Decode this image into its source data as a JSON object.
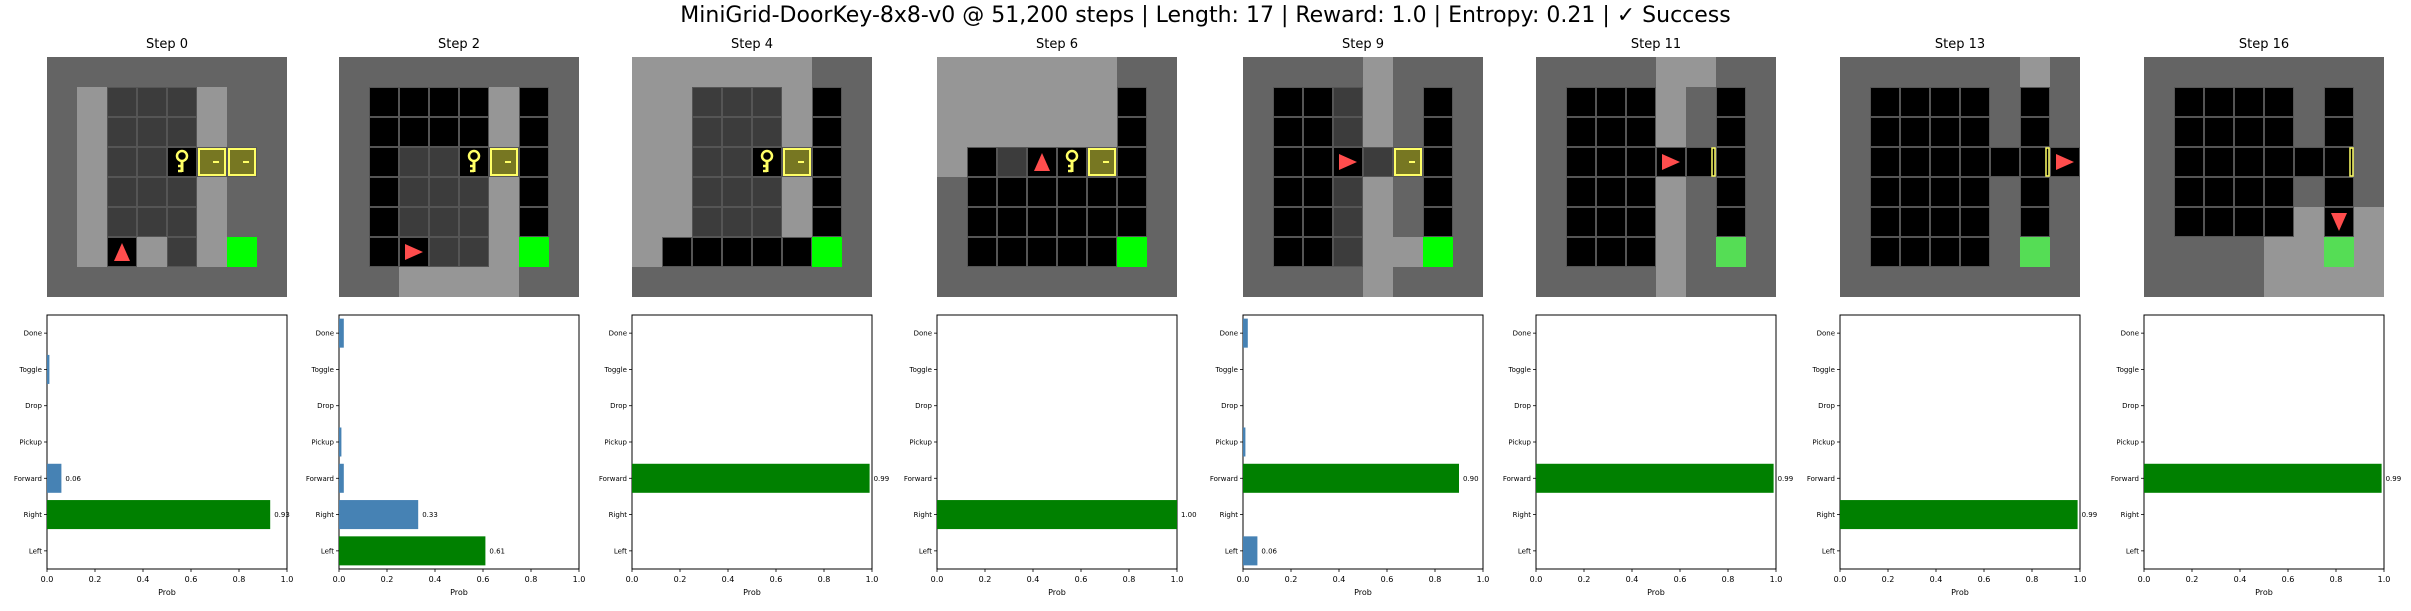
{
  "title": "MiniGrid-DoorKey-8x8-v0 @ 51,200 steps | Length: 17 | Reward: 1.0 | Entropy: 0.21 | ✓ Success",
  "colors": {
    "wall": "#646464",
    "seen_floor": "#969696",
    "dark": "#000000",
    "cell_line": "#555555",
    "agent": "#ff4d4d",
    "key": "#ffff66",
    "door": "#aaaa44",
    "goal": "#00ff00",
    "bar_default": "#4682b4",
    "bar_selected": "#008000"
  },
  "chart_data": [
    {
      "type": "bar",
      "orientation": "horizontal",
      "title": "Step 0",
      "categories": [
        "Left",
        "Right",
        "Forward",
        "Pickup",
        "Drop",
        "Toggle",
        "Done"
      ],
      "values": [
        0.0,
        0.93,
        0.06,
        0.0,
        0.0,
        0.01,
        0.0
      ],
      "value_labels": [
        "",
        "0.93",
        "0.06",
        "",
        "",
        "",
        ""
      ],
      "selected": 1,
      "xlabel": "Prob",
      "xlim": [
        0,
        1
      ],
      "xticks": [
        "0.0",
        "0.2",
        "0.4",
        "0.6",
        "0.8",
        "1.0"
      ]
    },
    {
      "type": "bar",
      "orientation": "horizontal",
      "title": "Step 2",
      "categories": [
        "Left",
        "Right",
        "Forward",
        "Pickup",
        "Drop",
        "Toggle",
        "Done"
      ],
      "values": [
        0.61,
        0.33,
        0.02,
        0.01,
        0.0,
        0.0,
        0.02
      ],
      "value_labels": [
        "0.61",
        "0.33",
        "",
        "",
        "",
        "",
        ""
      ],
      "selected": 0,
      "xlabel": "Prob",
      "xlim": [
        0,
        1
      ],
      "xticks": [
        "0.0",
        "0.2",
        "0.4",
        "0.6",
        "0.8",
        "1.0"
      ]
    },
    {
      "type": "bar",
      "orientation": "horizontal",
      "title": "Step 4",
      "categories": [
        "Left",
        "Right",
        "Forward",
        "Pickup",
        "Drop",
        "Toggle",
        "Done"
      ],
      "values": [
        0.0,
        0.0,
        0.99,
        0.0,
        0.0,
        0.0,
        0.0
      ],
      "value_labels": [
        "",
        "",
        "0.99",
        "",
        "",
        "",
        ""
      ],
      "selected": 2,
      "xlabel": "Prob",
      "xlim": [
        0,
        1
      ],
      "xticks": [
        "0.0",
        "0.2",
        "0.4",
        "0.6",
        "0.8",
        "1.0"
      ]
    },
    {
      "type": "bar",
      "orientation": "horizontal",
      "title": "Step 6",
      "categories": [
        "Left",
        "Right",
        "Forward",
        "Pickup",
        "Drop",
        "Toggle",
        "Done"
      ],
      "values": [
        0.0,
        1.0,
        0.0,
        0.0,
        0.0,
        0.0,
        0.0
      ],
      "value_labels": [
        "",
        "1.00",
        "",
        "",
        "",
        "",
        ""
      ],
      "selected": 1,
      "xlabel": "Prob",
      "xlim": [
        0,
        1
      ],
      "xticks": [
        "0.0",
        "0.2",
        "0.4",
        "0.6",
        "0.8",
        "1.0"
      ]
    },
    {
      "type": "bar",
      "orientation": "horizontal",
      "title": "Step 9",
      "categories": [
        "Left",
        "Right",
        "Forward",
        "Pickup",
        "Drop",
        "Toggle",
        "Done"
      ],
      "values": [
        0.06,
        0.0,
        0.9,
        0.01,
        0.0,
        0.0,
        0.02
      ],
      "value_labels": [
        "0.06",
        "",
        "0.90",
        "",
        "",
        "",
        ""
      ],
      "selected": 2,
      "xlabel": "Prob",
      "xlim": [
        0,
        1
      ],
      "xticks": [
        "0.0",
        "0.2",
        "0.4",
        "0.6",
        "0.8",
        "1.0"
      ]
    },
    {
      "type": "bar",
      "orientation": "horizontal",
      "title": "Step 11",
      "categories": [
        "Left",
        "Right",
        "Forward",
        "Pickup",
        "Drop",
        "Toggle",
        "Done"
      ],
      "values": [
        0.0,
        0.0,
        0.99,
        0.0,
        0.0,
        0.0,
        0.0
      ],
      "value_labels": [
        "",
        "",
        "0.99",
        "",
        "",
        "",
        ""
      ],
      "selected": 2,
      "xlabel": "Prob",
      "xlim": [
        0,
        1
      ],
      "xticks": [
        "0.0",
        "0.2",
        "0.4",
        "0.6",
        "0.8",
        "1.0"
      ]
    },
    {
      "type": "bar",
      "orientation": "horizontal",
      "title": "Step 13",
      "categories": [
        "Left",
        "Right",
        "Forward",
        "Pickup",
        "Drop",
        "Toggle",
        "Done"
      ],
      "values": [
        0.0,
        0.99,
        0.0,
        0.0,
        0.0,
        0.0,
        0.0
      ],
      "value_labels": [
        "",
        "0.99",
        "",
        "",
        "",
        "",
        ""
      ],
      "selected": 1,
      "xlabel": "Prob",
      "xlim": [
        0,
        1
      ],
      "xticks": [
        "0.0",
        "0.2",
        "0.4",
        "0.6",
        "0.8",
        "1.0"
      ]
    },
    {
      "type": "bar",
      "orientation": "horizontal",
      "title": "Step 16",
      "categories": [
        "Left",
        "Right",
        "Forward",
        "Pickup",
        "Drop",
        "Toggle",
        "Done"
      ],
      "values": [
        0.0,
        0.0,
        0.99,
        0.0,
        0.0,
        0.0,
        0.0
      ],
      "value_labels": [
        "",
        "",
        "0.99",
        "",
        "",
        "",
        ""
      ],
      "selected": 2,
      "xlabel": "Prob",
      "xlim": [
        0,
        1
      ],
      "xticks": [
        "0.0",
        "0.2",
        "0.4",
        "0.6",
        "0.8",
        "1.0"
      ]
    }
  ],
  "grids": [
    {
      "rows": [
        "WWWWWWWW",
        "WSFFFSWW",
        "WSFFFSWW",
        "WSFFKDDW",
        "WSFFFSWW",
        "WSFFFSWW",
        "WSASFSGW",
        "WWWWWWWW"
      ],
      "agent_dir": "up",
      "door_open": false,
      "goal_bright": true
    },
    {
      "rows": [
        "WWWWWWWW",
        "WXXXXSXW",
        "WXXXXSXW",
        "WXFFKDXW",
        "WXFFFSXW",
        "WXFFFSXW",
        "WXAFFSGW",
        "WWSSSSWW"
      ],
      "agent_dir": "right",
      "door_open": false,
      "goal_bright": true
    },
    {
      "rows": [
        "SSSSSSWW",
        "SSFFFSXW",
        "SSFFFSXW",
        "SSFFKDXW",
        "SSFFFSXW",
        "SSFFFSXW",
        "SXXXXXGW",
        "WWWWWWWW"
      ],
      "agent_dir": "up",
      "door_open": false,
      "goal_bright": true
    },
    {
      "rows": [
        "SSSSSSWW",
        "SSSSSSXW",
        "SSSSSSXW",
        "SXFAKDXW",
        "WXXXXXXW",
        "WXXXXXXW",
        "WXXXXXGW",
        "WWWWWWWW"
      ],
      "agent_dir": "up",
      "door_open": false,
      "goal_bright": true
    },
    {
      "rows": [
        "WWWWSWWW",
        "WXXFSWXW",
        "WXXFSWXW",
        "WXXAFDXW",
        "WXXFSWXW",
        "WXXFSWXW",
        "WXXFSSGW",
        "WWWWSWWW"
      ],
      "agent_dir": "right",
      "door_open": false,
      "goal_bright": true
    },
    {
      "rows": [
        "WWWWSSWW",
        "WXXXSWXW",
        "WXXXSWXW",
        "WXXXAOXW",
        "WXXXSWXW",
        "WXXXSWXW",
        "WXXXSWGW",
        "WWWWSWWW"
      ],
      "agent_dir": "right",
      "door_open": true,
      "goal_bright": false
    },
    {
      "rows": [
        "WWWWWWSW",
        "WXXXXWXW",
        "WXXXXWXW",
        "WXXXXXOA",
        "WXXXXWXW",
        "WXXXXWXW",
        "WXXXXWGW",
        "WWWWWWWW"
      ],
      "agent_dir": "right",
      "door_open": true,
      "goal_bright": false
    },
    {
      "rows": [
        "WWWWWWWW",
        "WXXXXWXW",
        "WXXXXWXW",
        "WXXXXXOW",
        "WXXXXWXW",
        "WXXXXSAS",
        "WWWWSSGS",
        "WWWWSSSS"
      ],
      "agent_dir": "down",
      "door_open": true,
      "goal_bright": false
    }
  ]
}
